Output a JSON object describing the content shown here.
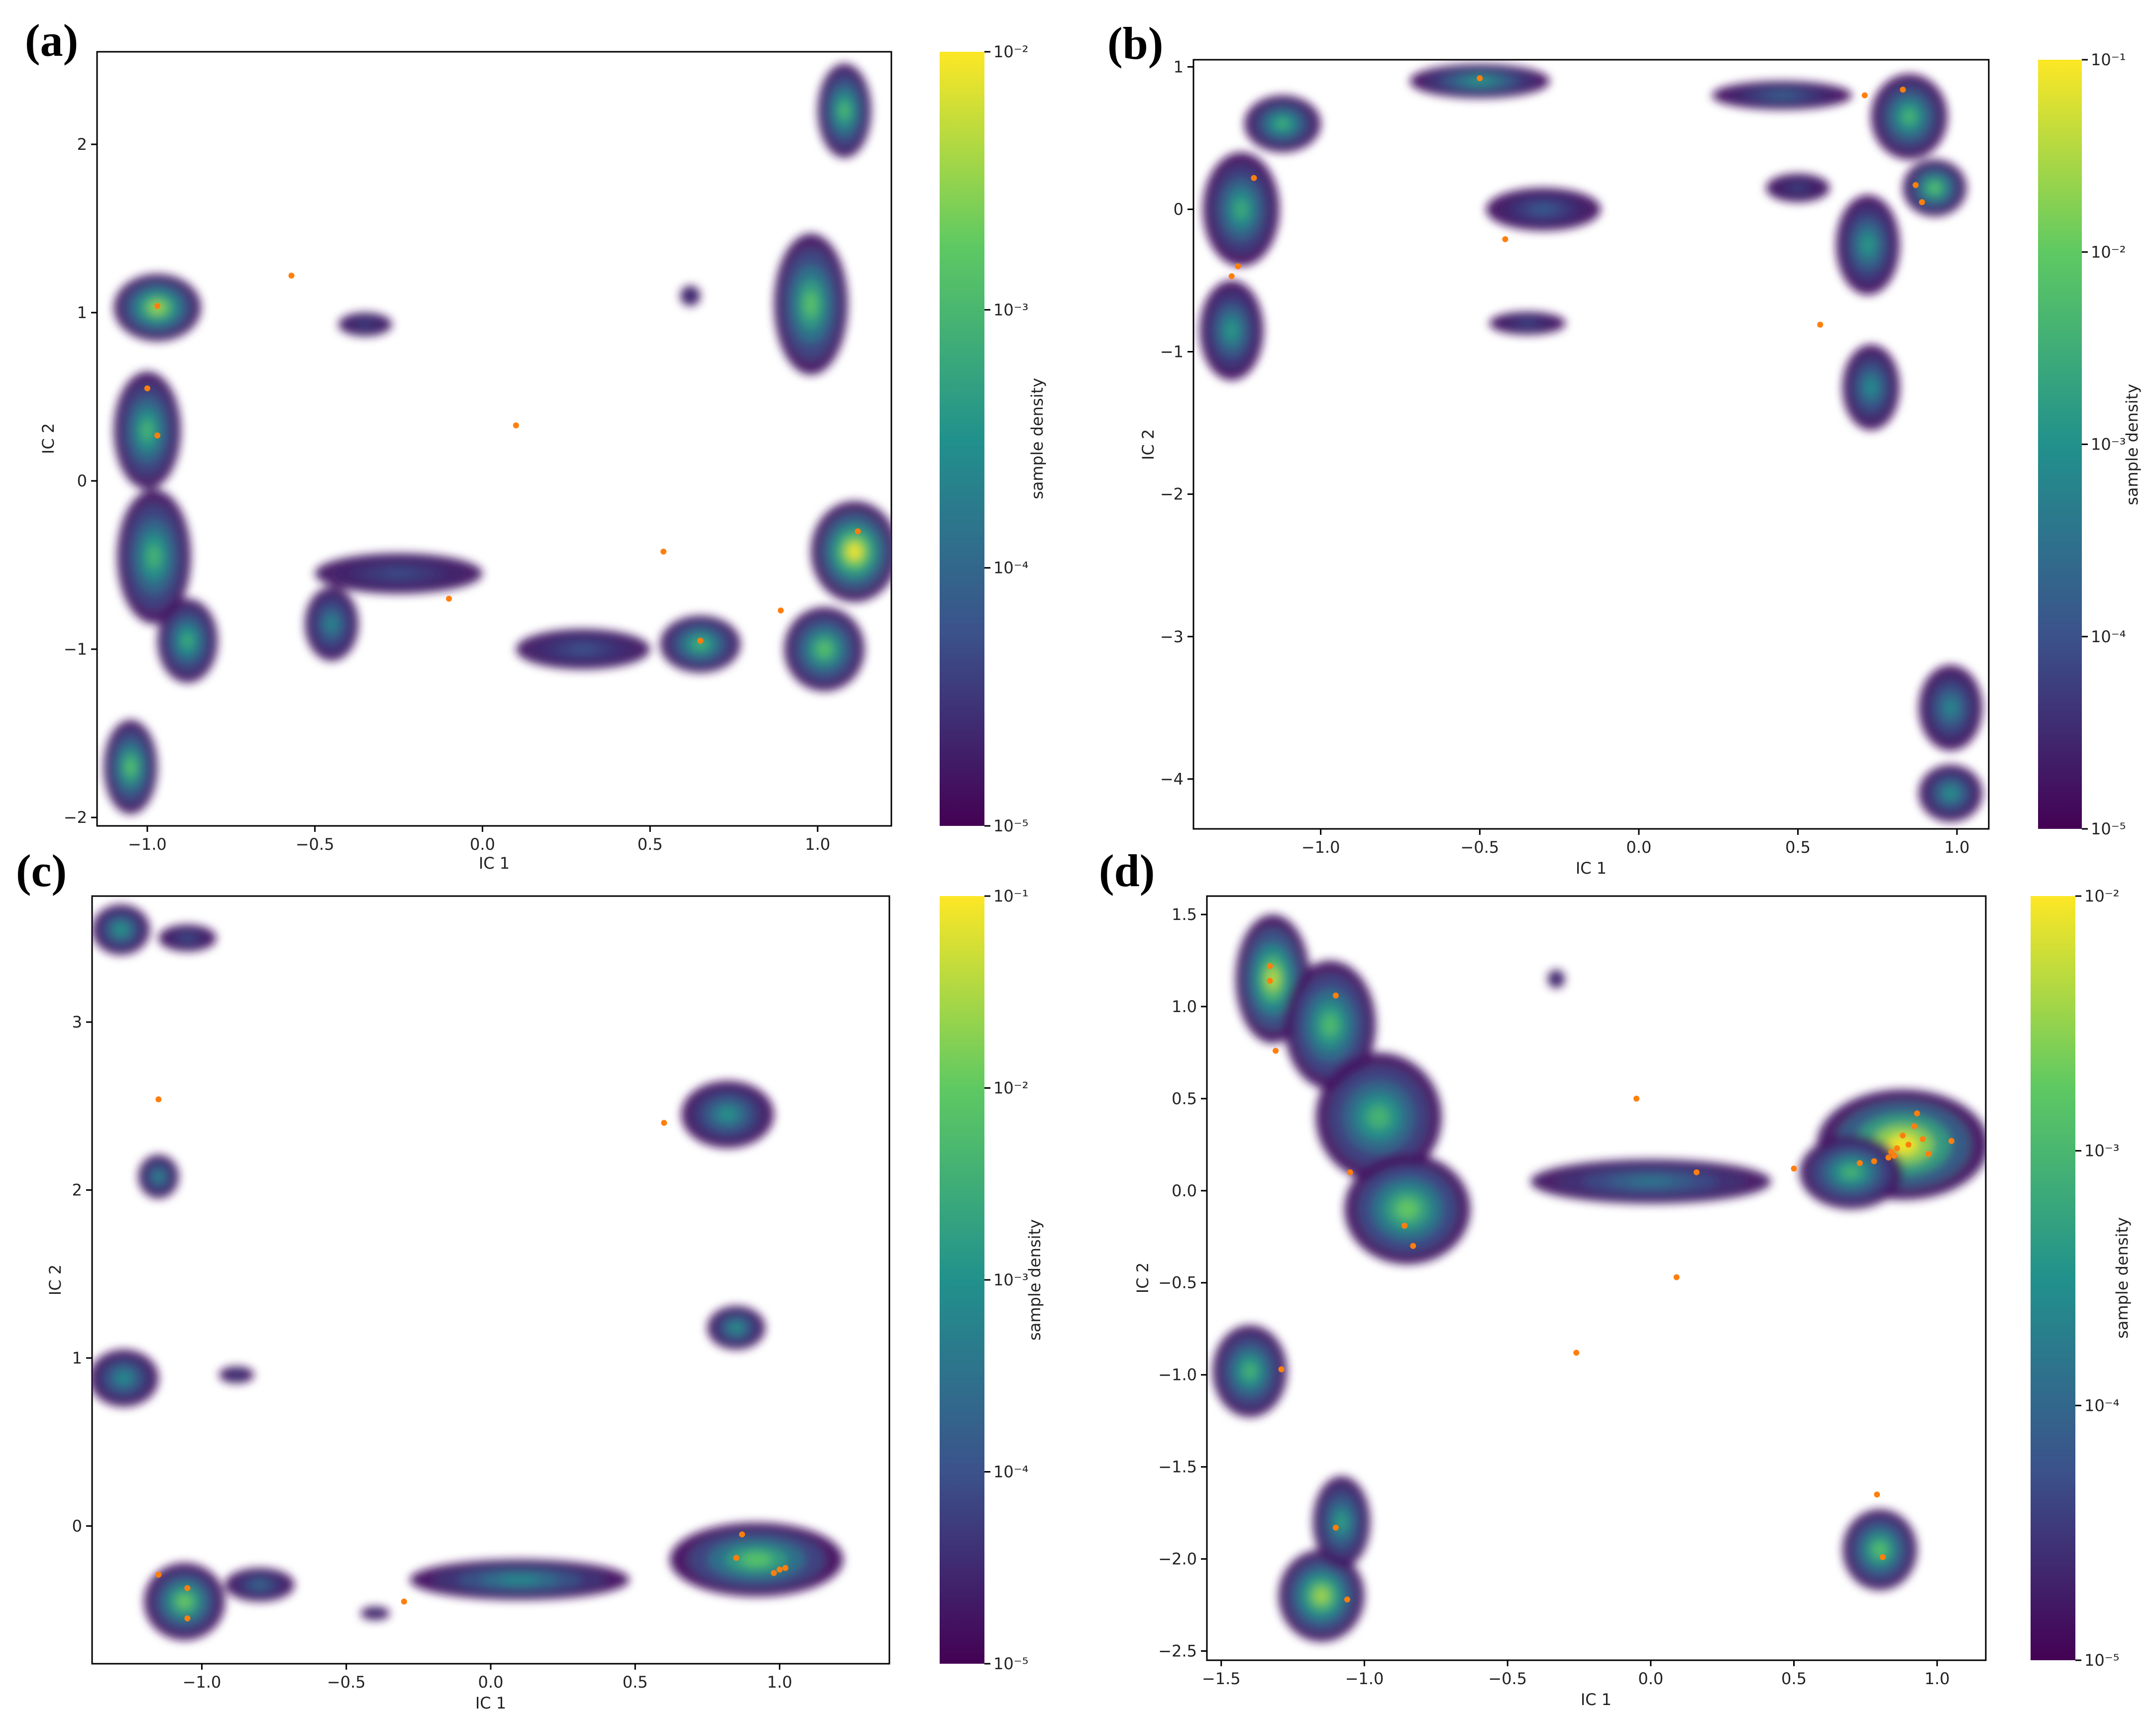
{
  "figure": {
    "colormap": [
      "#440154",
      "#3b528b",
      "#21918c",
      "#5ec962",
      "#fde725"
    ]
  },
  "chart_data": [
    {
      "id": "a",
      "panel_label": "(a)",
      "type": "heatmap",
      "xlabel": "IC 1",
      "ylabel": "IC 2",
      "xlim": [
        -1.15,
        1.22
      ],
      "ylim": [
        -2.05,
        2.55
      ],
      "xticks": [
        -1.0,
        -0.5,
        0.0,
        0.5,
        1.0
      ],
      "xtick_labels": [
        "−1.0",
        "−0.5",
        "0.0",
        "0.5",
        "1.0"
      ],
      "yticks": [
        -2,
        -1,
        0,
        1,
        2
      ],
      "ytick_labels": [
        "−2",
        "−1",
        "0",
        "1",
        "2"
      ],
      "colorbar": {
        "label": "sample density",
        "exp_min": -5,
        "exp_max": -2,
        "ticks": [
          {
            "exp": -2,
            "label": "10⁻²"
          },
          {
            "exp": -3,
            "label": "10⁻³"
          },
          {
            "exp": -4,
            "label": "10⁻⁴"
          },
          {
            "exp": -5,
            "label": "10⁻⁵"
          }
        ]
      },
      "density_blobs": [
        {
          "x": -0.97,
          "y": 1.03,
          "rx": 0.13,
          "ry": 0.2,
          "logd": -2.4
        },
        {
          "x": -1.0,
          "y": 0.3,
          "rx": 0.1,
          "ry": 0.35,
          "logd": -3.0
        },
        {
          "x": -0.98,
          "y": -0.45,
          "rx": 0.11,
          "ry": 0.4,
          "logd": -3.0
        },
        {
          "x": -0.88,
          "y": -0.95,
          "rx": 0.09,
          "ry": 0.25,
          "logd": -3.1
        },
        {
          "x": -1.05,
          "y": -1.7,
          "rx": 0.08,
          "ry": 0.28,
          "logd": -2.8
        },
        {
          "x": -0.45,
          "y": -0.85,
          "rx": 0.08,
          "ry": 0.22,
          "logd": -3.6
        },
        {
          "x": -0.25,
          "y": -0.55,
          "rx": 0.25,
          "ry": 0.12,
          "logd": -4.3
        },
        {
          "x": -0.35,
          "y": 0.93,
          "rx": 0.08,
          "ry": 0.07,
          "logd": -4.4
        },
        {
          "x": 0.3,
          "y": -1.0,
          "rx": 0.2,
          "ry": 0.12,
          "logd": -4.2
        },
        {
          "x": 0.65,
          "y": -0.97,
          "rx": 0.12,
          "ry": 0.17,
          "logd": -3.0
        },
        {
          "x": 0.98,
          "y": 1.05,
          "rx": 0.11,
          "ry": 0.42,
          "logd": -2.8
        },
        {
          "x": 1.08,
          "y": 2.2,
          "rx": 0.08,
          "ry": 0.28,
          "logd": -2.9
        },
        {
          "x": 1.11,
          "y": -0.42,
          "rx": 0.13,
          "ry": 0.3,
          "logd": -2.0
        },
        {
          "x": 1.02,
          "y": -1.0,
          "rx": 0.12,
          "ry": 0.25,
          "logd": -2.8
        },
        {
          "x": 0.62,
          "y": 1.1,
          "rx": 0.03,
          "ry": 0.06,
          "logd": -4.5
        }
      ],
      "highlight_points": [
        {
          "x": -0.97,
          "y": 1.04
        },
        {
          "x": -0.57,
          "y": 1.22
        },
        {
          "x": -1.0,
          "y": 0.55
        },
        {
          "x": -0.97,
          "y": 0.27
        },
        {
          "x": 0.1,
          "y": 0.33
        },
        {
          "x": 0.54,
          "y": -0.42
        },
        {
          "x": -0.1,
          "y": -0.7
        },
        {
          "x": 0.65,
          "y": -0.95
        },
        {
          "x": 0.89,
          "y": -0.77
        },
        {
          "x": 1.12,
          "y": -0.3
        }
      ]
    },
    {
      "id": "b",
      "panel_label": "(b)",
      "type": "heatmap",
      "xlabel": "IC 1",
      "ylabel": "IC 2",
      "xlim": [
        -1.4,
        1.1
      ],
      "ylim": [
        -4.35,
        1.05
      ],
      "xticks": [
        -1.0,
        -0.5,
        0.0,
        0.5,
        1.0
      ],
      "xtick_labels": [
        "−1.0",
        "−0.5",
        "0.0",
        "0.5",
        "1.0"
      ],
      "yticks": [
        -4,
        -3,
        -2,
        -1,
        0,
        1
      ],
      "ytick_labels": [
        "−4",
        "−3",
        "−2",
        "−1",
        "0",
        "1"
      ],
      "colorbar": {
        "label": "sample density",
        "exp_min": -5,
        "exp_max": -1,
        "ticks": [
          {
            "exp": -1,
            "label": "10⁻¹"
          },
          {
            "exp": -2,
            "label": "10⁻²"
          },
          {
            "exp": -3,
            "label": "10⁻³"
          },
          {
            "exp": -4,
            "label": "10⁻⁴"
          },
          {
            "exp": -5,
            "label": "10⁻⁵"
          }
        ]
      },
      "density_blobs": [
        {
          "x": -1.12,
          "y": 0.6,
          "rx": 0.12,
          "ry": 0.2,
          "logd": -2.4
        },
        {
          "x": -1.25,
          "y": 0.0,
          "rx": 0.12,
          "ry": 0.4,
          "logd": -2.5
        },
        {
          "x": -1.28,
          "y": -0.85,
          "rx": 0.1,
          "ry": 0.35,
          "logd": -2.8
        },
        {
          "x": -0.5,
          "y": 0.9,
          "rx": 0.22,
          "ry": 0.12,
          "logd": -2.8
        },
        {
          "x": -0.3,
          "y": 0.0,
          "rx": 0.18,
          "ry": 0.15,
          "logd": -3.8
        },
        {
          "x": -0.35,
          "y": -0.8,
          "rx": 0.12,
          "ry": 0.08,
          "logd": -4.1
        },
        {
          "x": 0.45,
          "y": 0.8,
          "rx": 0.22,
          "ry": 0.1,
          "logd": -3.7
        },
        {
          "x": 0.85,
          "y": 0.65,
          "rx": 0.12,
          "ry": 0.3,
          "logd": -2.3
        },
        {
          "x": 0.93,
          "y": 0.15,
          "rx": 0.1,
          "ry": 0.2,
          "logd": -2.0
        },
        {
          "x": 0.72,
          "y": -0.25,
          "rx": 0.1,
          "ry": 0.35,
          "logd": -2.8
        },
        {
          "x": 0.5,
          "y": 0.15,
          "rx": 0.1,
          "ry": 0.1,
          "logd": -4.2
        },
        {
          "x": 0.73,
          "y": -1.25,
          "rx": 0.09,
          "ry": 0.3,
          "logd": -3.0
        },
        {
          "x": 0.98,
          "y": -3.5,
          "rx": 0.1,
          "ry": 0.3,
          "logd": -3.1
        },
        {
          "x": 0.98,
          "y": -4.1,
          "rx": 0.1,
          "ry": 0.2,
          "logd": -2.9
        }
      ],
      "highlight_points": [
        {
          "x": -1.21,
          "y": 0.22
        },
        {
          "x": -1.26,
          "y": -0.4
        },
        {
          "x": -1.28,
          "y": -0.47
        },
        {
          "x": -0.5,
          "y": 0.92
        },
        {
          "x": -0.42,
          "y": -0.21
        },
        {
          "x": 0.57,
          "y": -0.81
        },
        {
          "x": 0.71,
          "y": 0.8
        },
        {
          "x": 0.83,
          "y": 0.84
        },
        {
          "x": 0.87,
          "y": 0.17
        },
        {
          "x": 0.89,
          "y": 0.05
        }
      ]
    },
    {
      "id": "c",
      "panel_label": "(c)",
      "type": "heatmap",
      "xlabel": "IC 1",
      "ylabel": "IC 2",
      "xlim": [
        -1.38,
        1.38
      ],
      "ylim": [
        -0.82,
        3.75
      ],
      "xticks": [
        -1.0,
        -0.5,
        0.0,
        0.5,
        1.0
      ],
      "xtick_labels": [
        "−1.0",
        "−0.5",
        "0.0",
        "0.5",
        "1.0"
      ],
      "yticks": [
        0,
        1,
        2,
        3
      ],
      "ytick_labels": [
        "0",
        "1",
        "2",
        "3"
      ],
      "colorbar": {
        "label": "sample density",
        "exp_min": -5,
        "exp_max": -1,
        "ticks": [
          {
            "exp": -1,
            "label": "10⁻¹"
          },
          {
            "exp": -2,
            "label": "10⁻²"
          },
          {
            "exp": -3,
            "label": "10⁻³"
          },
          {
            "exp": -4,
            "label": "10⁻⁴"
          },
          {
            "exp": -5,
            "label": "10⁻⁵"
          }
        ]
      },
      "density_blobs": [
        {
          "x": -1.28,
          "y": 3.55,
          "rx": 0.1,
          "ry": 0.15,
          "logd": -2.8
        },
        {
          "x": -1.05,
          "y": 3.5,
          "rx": 0.1,
          "ry": 0.08,
          "logd": -4.0
        },
        {
          "x": -1.15,
          "y": 2.08,
          "rx": 0.07,
          "ry": 0.13,
          "logd": -3.1
        },
        {
          "x": -1.27,
          "y": 0.88,
          "rx": 0.12,
          "ry": 0.17,
          "logd": -3.0
        },
        {
          "x": -0.88,
          "y": 0.9,
          "rx": 0.06,
          "ry": 0.05,
          "logd": -4.2
        },
        {
          "x": 0.82,
          "y": 2.45,
          "rx": 0.16,
          "ry": 0.2,
          "logd": -2.9
        },
        {
          "x": 0.85,
          "y": 1.18,
          "rx": 0.1,
          "ry": 0.13,
          "logd": -2.9
        },
        {
          "x": -1.06,
          "y": -0.45,
          "rx": 0.14,
          "ry": 0.23,
          "logd": -1.9
        },
        {
          "x": -0.8,
          "y": -0.35,
          "rx": 0.12,
          "ry": 0.1,
          "logd": -3.6
        },
        {
          "x": 0.1,
          "y": -0.32,
          "rx": 0.38,
          "ry": 0.12,
          "logd": -3.0
        },
        {
          "x": 0.92,
          "y": -0.2,
          "rx": 0.3,
          "ry": 0.22,
          "logd": -2.0
        },
        {
          "x": -0.4,
          "y": -0.52,
          "rx": 0.05,
          "ry": 0.04,
          "logd": -4.3
        }
      ],
      "highlight_points": [
        {
          "x": -1.15,
          "y": 2.54
        },
        {
          "x": 0.6,
          "y": 2.4
        },
        {
          "x": -1.15,
          "y": -0.29
        },
        {
          "x": -1.05,
          "y": -0.37
        },
        {
          "x": -1.05,
          "y": -0.55
        },
        {
          "x": -0.3,
          "y": -0.45
        },
        {
          "x": 0.87,
          "y": -0.05
        },
        {
          "x": 0.85,
          "y": -0.19
        },
        {
          "x": 0.98,
          "y": -0.28
        },
        {
          "x": 1.0,
          "y": -0.26
        },
        {
          "x": 1.02,
          "y": -0.25
        }
      ]
    },
    {
      "id": "d",
      "panel_label": "(d)",
      "type": "heatmap",
      "xlabel": "IC 1",
      "ylabel": "IC 2",
      "xlim": [
        -1.55,
        1.17
      ],
      "ylim": [
        -2.55,
        1.6
      ],
      "xticks": [
        -1.5,
        -1.0,
        -0.5,
        0.0,
        0.5,
        1.0
      ],
      "xtick_labels": [
        "−1.5",
        "−1.0",
        "−0.5",
        "0.0",
        "0.5",
        "1.0"
      ],
      "yticks": [
        -2.5,
        -2.0,
        -1.5,
        -1.0,
        -0.5,
        0.0,
        0.5,
        1.0,
        1.5
      ],
      "ytick_labels": [
        "−2.5",
        "−2.0",
        "−1.5",
        "−1.0",
        "−0.5",
        "0.0",
        "0.5",
        "1.0",
        "1.5"
      ],
      "colorbar": {
        "label": "sample density",
        "exp_min": -5,
        "exp_max": -2,
        "ticks": [
          {
            "exp": -2,
            "label": "10⁻²"
          },
          {
            "exp": -3,
            "label": "10⁻³"
          },
          {
            "exp": -4,
            "label": "10⁻⁴"
          },
          {
            "exp": -5,
            "label": "10⁻⁵"
          }
        ]
      },
      "density_blobs": [
        {
          "x": -1.32,
          "y": 1.15,
          "rx": 0.13,
          "ry": 0.35,
          "logd": -2.3
        },
        {
          "x": -1.12,
          "y": 0.9,
          "rx": 0.16,
          "ry": 0.35,
          "logd": -2.9
        },
        {
          "x": -0.95,
          "y": 0.4,
          "rx": 0.22,
          "ry": 0.35,
          "logd": -3.0
        },
        {
          "x": -0.85,
          "y": -0.1,
          "rx": 0.22,
          "ry": 0.3,
          "logd": -2.7
        },
        {
          "x": 0.0,
          "y": 0.05,
          "rx": 0.42,
          "ry": 0.12,
          "logd": -3.8
        },
        {
          "x": 0.88,
          "y": 0.25,
          "rx": 0.3,
          "ry": 0.3,
          "logd": -1.7
        },
        {
          "x": 0.7,
          "y": 0.1,
          "rx": 0.18,
          "ry": 0.2,
          "logd": -3.0
        },
        {
          "x": -1.4,
          "y": -0.98,
          "rx": 0.13,
          "ry": 0.25,
          "logd": -3.0
        },
        {
          "x": -1.15,
          "y": -2.2,
          "rx": 0.15,
          "ry": 0.25,
          "logd": -2.4
        },
        {
          "x": -1.08,
          "y": -1.8,
          "rx": 0.1,
          "ry": 0.25,
          "logd": -3.3
        },
        {
          "x": 0.8,
          "y": -1.95,
          "rx": 0.13,
          "ry": 0.22,
          "logd": -2.8
        },
        {
          "x": -0.33,
          "y": 1.15,
          "rx": 0.03,
          "ry": 0.05,
          "logd": -4.5
        }
      ],
      "highlight_points": [
        {
          "x": -1.33,
          "y": 1.22
        },
        {
          "x": -1.33,
          "y": 1.14
        },
        {
          "x": -1.31,
          "y": 0.76
        },
        {
          "x": -1.1,
          "y": 1.06
        },
        {
          "x": -1.05,
          "y": 0.1
        },
        {
          "x": -0.86,
          "y": -0.19
        },
        {
          "x": -0.83,
          "y": -0.3
        },
        {
          "x": -0.05,
          "y": 0.5
        },
        {
          "x": 0.16,
          "y": 0.1
        },
        {
          "x": 0.09,
          "y": -0.47
        },
        {
          "x": -0.26,
          "y": -0.88
        },
        {
          "x": -1.29,
          "y": -0.97
        },
        {
          "x": -1.1,
          "y": -1.83
        },
        {
          "x": -1.06,
          "y": -2.22
        },
        {
          "x": 0.5,
          "y": 0.12
        },
        {
          "x": 0.73,
          "y": 0.15
        },
        {
          "x": 0.78,
          "y": 0.16
        },
        {
          "x": 0.83,
          "y": 0.18
        },
        {
          "x": 0.84,
          "y": 0.21
        },
        {
          "x": 0.85,
          "y": 0.19
        },
        {
          "x": 0.86,
          "y": 0.23
        },
        {
          "x": 0.88,
          "y": 0.3
        },
        {
          "x": 0.9,
          "y": 0.25
        },
        {
          "x": 0.92,
          "y": 0.35
        },
        {
          "x": 0.93,
          "y": 0.42
        },
        {
          "x": 0.95,
          "y": 0.28
        },
        {
          "x": 0.97,
          "y": 0.2
        },
        {
          "x": 1.05,
          "y": 0.27
        },
        {
          "x": 0.79,
          "y": -1.65
        },
        {
          "x": 0.81,
          "y": -1.99
        }
      ]
    }
  ]
}
